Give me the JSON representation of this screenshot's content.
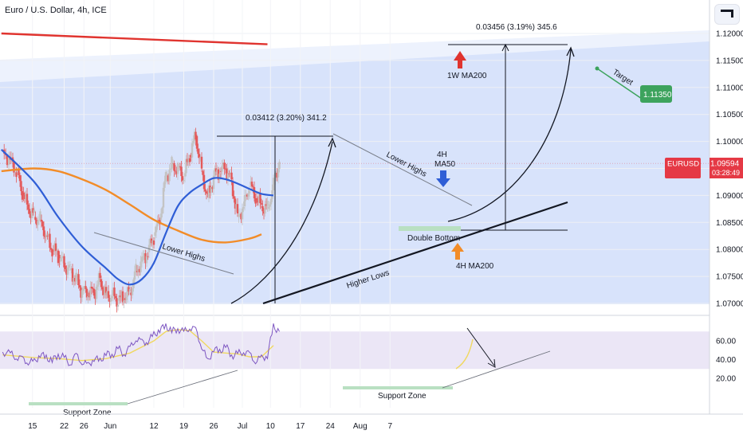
{
  "title": "Euro / U.S. Dollar, 4h, ICE",
  "colors": {
    "up": "#c4c4c4",
    "down": "#e4595a",
    "ma50": "#2f5ed6",
    "ma200": "#f28c28",
    "ma200_weekly": "#e0342f",
    "channel": "#d8e3fb",
    "rsi_band": "#ebe6f6",
    "rsi_line": "#7e57c2",
    "rsi_ma": "#f0d860",
    "price_label": "#e53945",
    "target_label": "#3da35d",
    "support_zone": "#b9e0c2"
  },
  "chart_data": [
    {
      "type": "line",
      "title": "Euro / U.S. Dollar, 4h, ICE",
      "ylim": [
        1.0695,
        1.1225
      ],
      "yticks": [
        "1.12000",
        "1.11500",
        "1.11000",
        "1.10500",
        "1.10000",
        "1.09500",
        "1.09000",
        "1.08500",
        "1.08000",
        "1.07500",
        "1.07000"
      ],
      "xticks": [
        "15",
        "22",
        "26",
        "Jun",
        "12",
        "19",
        "26",
        "Jul",
        "10",
        "17",
        "24",
        "Aug",
        "7"
      ],
      "x_unit": "trading day index (15 May = 0)",
      "xlim": [
        -5.5,
        60.5
      ],
      "series": [
        {
          "name": "EURUSD",
          "x": [
            -5.3,
            -4,
            -3,
            -2,
            -1,
            0,
            1,
            2,
            3,
            4,
            5,
            6,
            7,
            8,
            9,
            10,
            11,
            12,
            13,
            14,
            15,
            16,
            17,
            18,
            19,
            20,
            21,
            22,
            23,
            24,
            25,
            26,
            27,
            28,
            29,
            30,
            31,
            32,
            33,
            34,
            35,
            36,
            37,
            38,
            39,
            40,
            41
          ],
          "y": [
            1.0985,
            1.0965,
            1.0945,
            1.0905,
            1.0875,
            1.086,
            1.0855,
            1.0825,
            1.08,
            1.079,
            1.077,
            1.0762,
            1.0745,
            1.0723,
            1.072,
            1.072,
            1.0745,
            1.0715,
            1.0715,
            1.0705,
            1.071,
            1.072,
            1.076,
            1.078,
            1.0795,
            1.0825,
            1.0855,
            1.0935,
            1.0955,
            1.095,
            1.0935,
            1.0975,
            1.101,
            1.0945,
            1.0895,
            1.0935,
            1.0945,
            1.095,
            1.0925,
            1.086,
            1.088,
            1.092,
            1.0895,
            1.088,
            1.0875,
            1.092,
            1.0965
          ]
        },
        {
          "name": "4H MA50",
          "x": [
            -5.5,
            0,
            4,
            8,
            12,
            14,
            16,
            18,
            20,
            22,
            24,
            26,
            28,
            30,
            32,
            34,
            36,
            38,
            40
          ],
          "y": [
            1.0985,
            1.0925,
            1.086,
            1.0805,
            1.0765,
            1.0745,
            1.0735,
            1.0745,
            1.0775,
            1.083,
            1.088,
            1.0905,
            1.092,
            1.0932,
            1.093,
            1.0922,
            1.0912,
            1.0903,
            1.09
          ]
        },
        {
          "name": "4H MA200",
          "x": [
            -5.5,
            0,
            4,
            8,
            12,
            16,
            20,
            24,
            28,
            32,
            36,
            38
          ],
          "y": [
            1.0945,
            1.095,
            1.0945,
            1.093,
            1.091,
            1.0883,
            1.0855,
            1.0835,
            1.0818,
            1.0813,
            1.082,
            1.0828
          ]
        },
        {
          "name": "1W MA200",
          "x": [
            -5.5,
            39
          ],
          "y": [
            1.12,
            1.118
          ]
        }
      ],
      "annotations": {
        "lower_highs_1": "Lower Highs",
        "lower_highs_2": "Lower Highs",
        "higher_lows": "Higher Lows",
        "double_bottom": "Double Bottom",
        "ma50_label_1": "4H",
        "ma50_label_2": "MA50",
        "ma200_label": "4H MA200",
        "w_ma200_label": "1W MA200",
        "measure_1": "0.03412 (3.20%) 341.2",
        "measure_2": "0.03456 (3.19%) 345.6",
        "target": "Target",
        "target_value": "1.11350",
        "price_symbol": "EURUSD",
        "price_value": "1.09594",
        "countdown": "03:28:49"
      }
    },
    {
      "type": "line",
      "title": "",
      "ylim": [
        15,
        85
      ],
      "yticks": [
        "60.00",
        "40.00",
        "20.00"
      ],
      "series": [
        {
          "name": "RSI",
          "x": [
            -5.3,
            -4,
            -3,
            -2,
            -1,
            0,
            1,
            2,
            3,
            4,
            5,
            6,
            7,
            8,
            9,
            10,
            11,
            12,
            13,
            14,
            15,
            16,
            17,
            18,
            19,
            20,
            21,
            22,
            23,
            24,
            25,
            26,
            27,
            28,
            29,
            30,
            31,
            32,
            33,
            34,
            35,
            36,
            37,
            38,
            39,
            40,
            41
          ],
          "y": [
            48,
            46,
            43,
            40,
            38,
            37,
            46,
            42,
            39,
            45,
            42,
            36,
            44,
            38,
            33,
            42,
            38,
            47,
            44,
            52,
            46,
            52,
            63,
            58,
            60,
            66,
            72,
            76,
            70,
            73,
            69,
            75,
            71,
            55,
            37,
            52,
            48,
            55,
            44,
            46,
            49,
            45,
            39,
            41,
            45,
            75,
            70
          ]
        },
        {
          "name": "RSI MA",
          "x": [
            -5.3,
            0,
            4,
            8,
            12,
            16,
            20,
            22,
            24,
            26,
            28,
            30,
            32,
            34,
            36,
            38,
            40
          ],
          "y": [
            45,
            42,
            41,
            39,
            41,
            47,
            60,
            70,
            72,
            71,
            60,
            48,
            47,
            46,
            43,
            43,
            55
          ]
        }
      ],
      "annotations": {
        "support_zone_1": "Support Zone",
        "support_zone_2": "Support Zone"
      }
    }
  ]
}
